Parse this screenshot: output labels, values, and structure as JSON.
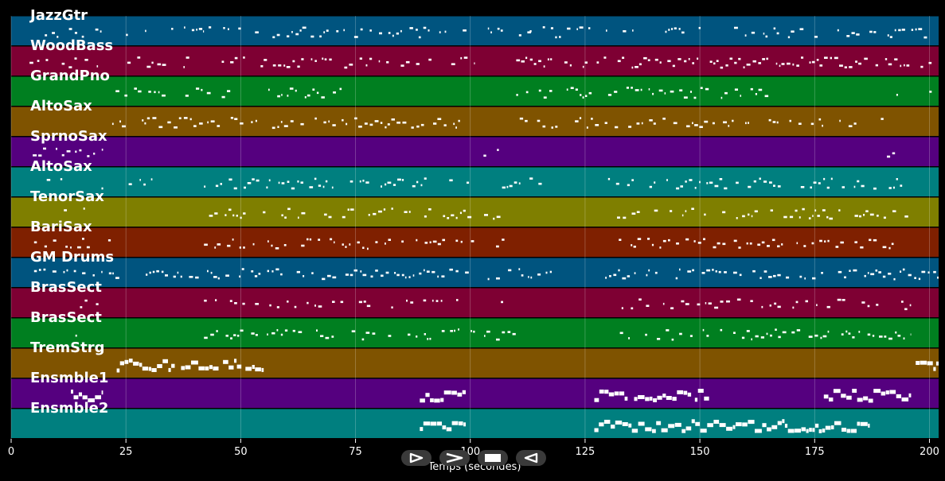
{
  "chart_data": {
    "type": "piano-roll",
    "xlabel": "Temps (secondes)",
    "xlim": [
      0,
      202
    ],
    "xticks": [
      0,
      25,
      50,
      75,
      100,
      125,
      150,
      175,
      200
    ],
    "grid": true,
    "tracks": [
      {
        "name": "JazzGtr",
        "color": "#00547f",
        "segments": [
          [
            5,
            22,
            0.4
          ],
          [
            25,
            42,
            0.4
          ],
          [
            43,
            59,
            0.45
          ],
          [
            60,
            101,
            0.55
          ],
          [
            103,
            118,
            0.3
          ],
          [
            110,
            202,
            0.5
          ]
        ]
      },
      {
        "name": "WoodBass",
        "color": "#7e0033",
        "segments": [
          [
            4,
            20,
            0.55
          ],
          [
            24,
            55,
            0.45
          ],
          [
            55,
            101,
            0.6
          ],
          [
            110,
            196,
            0.6
          ],
          [
            197,
            202,
            0.2
          ]
        ]
      },
      {
        "name": "GrandPno",
        "color": "#007f20",
        "segments": [
          [
            22,
            48,
            0.5
          ],
          [
            56,
            72,
            0.7
          ],
          [
            79,
            80,
            0.2
          ],
          [
            110,
            118,
            0.4
          ],
          [
            121,
            165,
            0.6
          ],
          [
            192,
            202,
            0.3
          ]
        ]
      },
      {
        "name": "AltoSax",
        "color": "#7f5300",
        "segments": [
          [
            22,
            101,
            0.6
          ],
          [
            110,
            190,
            0.6
          ]
        ]
      },
      {
        "name": "SprnoSax",
        "color": "#55007f",
        "segments": [
          [
            4,
            20,
            0.5
          ],
          [
            101,
            108,
            0.4
          ],
          [
            190,
            196,
            0.5
          ]
        ]
      },
      {
        "name": "AltoSax",
        "color": "#007f7f",
        "segments": [
          [
            5,
            31,
            0.35
          ],
          [
            42,
            101,
            0.6
          ],
          [
            103,
            118,
            0.35
          ],
          [
            130,
            196,
            0.6
          ]
        ]
      },
      {
        "name": "TenorSax",
        "color": "#7f7f00",
        "segments": [
          [
            5,
            19,
            0.4
          ],
          [
            42,
            101,
            0.55
          ],
          [
            103,
            108,
            0.3
          ],
          [
            130,
            196,
            0.55
          ]
        ]
      },
      {
        "name": "BariSax",
        "color": "#7f2000",
        "segments": [
          [
            5,
            22,
            0.4
          ],
          [
            42,
            101,
            0.6
          ],
          [
            103,
            108,
            0.3
          ],
          [
            130,
            196,
            0.6
          ]
        ]
      },
      {
        "name": "GM Drums",
        "color": "#00547f",
        "segments": [
          [
            5,
            101,
            0.65
          ],
          [
            103,
            118,
            0.5
          ],
          [
            126,
            202,
            0.65
          ]
        ]
      },
      {
        "name": "BrasSect",
        "color": "#7e0033",
        "segments": [
          [
            14,
            20,
            0.4
          ],
          [
            42,
            101,
            0.5
          ],
          [
            103,
            108,
            0.3
          ],
          [
            130,
            196,
            0.5
          ]
        ]
      },
      {
        "name": "BrasSect",
        "color": "#007f20",
        "segments": [
          [
            14,
            22,
            0.4
          ],
          [
            42,
            101,
            0.6
          ],
          [
            103,
            110,
            0.35
          ],
          [
            130,
            196,
            0.6
          ]
        ]
      },
      {
        "name": "TremStrg",
        "color": "#7f5300",
        "segments": [
          [
            23,
            55,
            0.9
          ],
          [
            197,
            202,
            1
          ]
        ]
      },
      {
        "name": "Ensmble1",
        "color": "#55007f",
        "segments": [
          [
            13,
            20,
            1
          ],
          [
            89,
            99,
            1
          ],
          [
            127,
            152,
            0.9
          ],
          [
            177,
            196,
            1
          ]
        ]
      },
      {
        "name": "Ensmble2",
        "color": "#007f7f",
        "segments": [
          [
            89,
            99,
            1
          ],
          [
            127,
            187,
            1
          ]
        ]
      }
    ]
  },
  "controls": [
    {
      "name": "play-forward",
      "icon": "play-outline-icon"
    },
    {
      "name": "next",
      "icon": "chevron-right-icon"
    },
    {
      "name": "stop",
      "icon": "stop-icon"
    },
    {
      "name": "reverse",
      "icon": "play-reverse-outline-icon"
    }
  ]
}
